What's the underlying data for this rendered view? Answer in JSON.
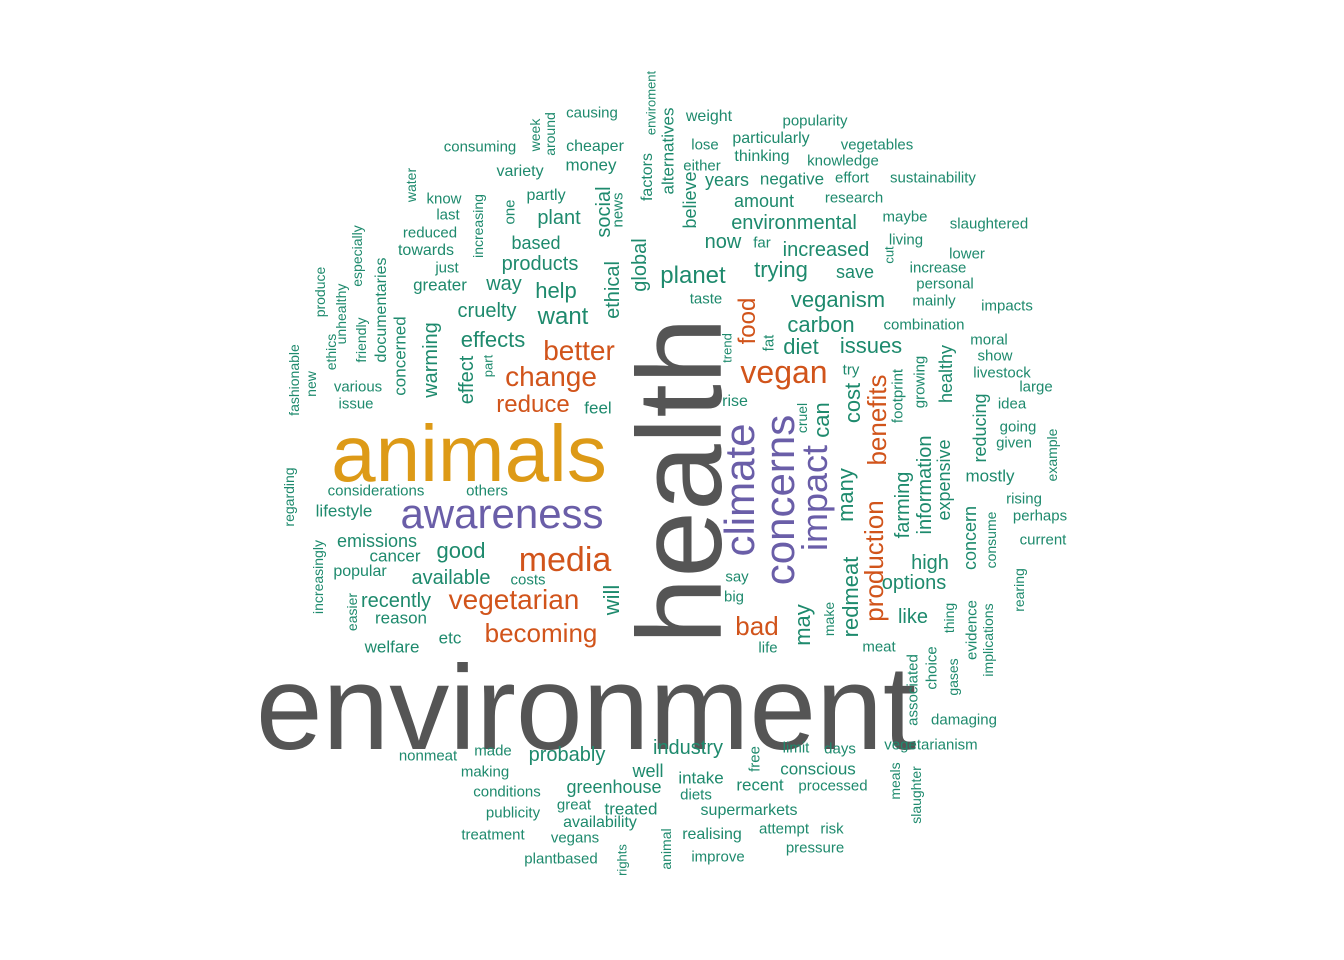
{
  "chart_data": {
    "type": "wordcloud",
    "title": "",
    "colors": {
      "gray": "#555555",
      "gold": "#dd9a17",
      "purple": "#6a5ea8",
      "orange": "#d1541b",
      "green": "#1e8a6d"
    },
    "words": [
      {
        "text": "environment",
        "weight": 100,
        "color": "gray"
      },
      {
        "text": "health",
        "weight": 100,
        "color": "gray"
      },
      {
        "text": "animals",
        "weight": 60,
        "color": "gold"
      },
      {
        "text": "awareness",
        "weight": 32,
        "color": "purple"
      },
      {
        "text": "climate",
        "weight": 34,
        "color": "purple"
      },
      {
        "text": "concerns",
        "weight": 32,
        "color": "purple"
      },
      {
        "text": "impact",
        "weight": 28,
        "color": "purple"
      },
      {
        "text": "media",
        "weight": 22,
        "color": "orange"
      },
      {
        "text": "vegan",
        "weight": 21,
        "color": "orange"
      },
      {
        "text": "better",
        "weight": 18,
        "color": "orange"
      },
      {
        "text": "change",
        "weight": 18,
        "color": "orange"
      },
      {
        "text": "vegetarian",
        "weight": 18,
        "color": "orange"
      },
      {
        "text": "becoming",
        "weight": 16,
        "color": "orange"
      },
      {
        "text": "reduce",
        "weight": 16,
        "color": "orange"
      },
      {
        "text": "production",
        "weight": 16,
        "color": "orange"
      },
      {
        "text": "benefits",
        "weight": 16,
        "color": "orange"
      },
      {
        "text": "bad",
        "weight": 16,
        "color": "orange"
      },
      {
        "text": "food",
        "weight": 14,
        "color": "orange"
      },
      {
        "text": "may",
        "weight": 14,
        "color": "green"
      },
      {
        "text": "redmeat",
        "weight": 14,
        "color": "green"
      },
      {
        "text": "many",
        "weight": 14,
        "color": "green"
      },
      {
        "text": "cost",
        "weight": 13,
        "color": "green"
      },
      {
        "text": "can",
        "weight": 13,
        "color": "green"
      },
      {
        "text": "will",
        "weight": 12,
        "color": "green"
      },
      {
        "text": "global",
        "weight": 12,
        "color": "green"
      },
      {
        "text": "ethical",
        "weight": 12,
        "color": "green"
      },
      {
        "text": "social",
        "weight": 11,
        "color": "green"
      },
      {
        "text": "veganism",
        "weight": 14,
        "color": "green"
      },
      {
        "text": "carbon",
        "weight": 14,
        "color": "green"
      },
      {
        "text": "diet",
        "weight": 14,
        "color": "green"
      },
      {
        "text": "issues",
        "weight": 14,
        "color": "green"
      },
      {
        "text": "planet",
        "weight": 14,
        "color": "green"
      },
      {
        "text": "trying",
        "weight": 13,
        "color": "green"
      },
      {
        "text": "increased",
        "weight": 13,
        "color": "green"
      },
      {
        "text": "environmental",
        "weight": 13,
        "color": "green"
      },
      {
        "text": "good",
        "weight": 13,
        "color": "green"
      },
      {
        "text": "effects",
        "weight": 13,
        "color": "green"
      },
      {
        "text": "want",
        "weight": 13,
        "color": "green"
      },
      {
        "text": "help",
        "weight": 13,
        "color": "green"
      },
      {
        "text": "cruelty",
        "weight": 12,
        "color": "green"
      },
      {
        "text": "products",
        "weight": 12,
        "color": "green"
      },
      {
        "text": "farming",
        "weight": 12,
        "color": "green"
      },
      {
        "text": "information",
        "weight": 12,
        "color": "green"
      },
      {
        "text": "expensive",
        "weight": 12,
        "color": "green"
      },
      {
        "text": "healthy",
        "weight": 11,
        "color": "green"
      },
      {
        "text": "concern",
        "weight": 11,
        "color": "green"
      },
      {
        "text": "reducing",
        "weight": 11,
        "color": "green"
      },
      {
        "text": "options",
        "weight": 12,
        "color": "green"
      },
      {
        "text": "high",
        "weight": 12,
        "color": "green"
      },
      {
        "text": "like",
        "weight": 12,
        "color": "green"
      },
      {
        "text": "industry",
        "weight": 12,
        "color": "green"
      },
      {
        "text": "probably",
        "weight": 12,
        "color": "green"
      },
      {
        "text": "well",
        "weight": 12,
        "color": "green"
      },
      {
        "text": "greenhouse",
        "weight": 12,
        "color": "green"
      },
      {
        "text": "recently",
        "weight": 12,
        "color": "green"
      },
      {
        "text": "available",
        "weight": 11,
        "color": "green"
      },
      {
        "text": "warming",
        "weight": 11,
        "color": "green"
      },
      {
        "text": "effect",
        "weight": 11,
        "color": "green"
      },
      {
        "text": "now",
        "weight": 11,
        "color": "green"
      },
      {
        "text": "way",
        "weight": 11,
        "color": "green"
      },
      {
        "text": "plant",
        "weight": 11,
        "color": "green"
      },
      {
        "text": "based",
        "weight": 11,
        "color": "green"
      },
      {
        "text": "amount",
        "weight": 11,
        "color": "green"
      },
      {
        "text": "years",
        "weight": 11,
        "color": "green"
      },
      {
        "text": "save",
        "weight": 11,
        "color": "green"
      },
      {
        "text": "believe",
        "weight": 11,
        "color": "green"
      },
      {
        "text": "alternatives",
        "weight": 10,
        "color": "green"
      },
      {
        "text": "emissions",
        "weight": 10,
        "color": "green"
      },
      {
        "text": "cancer",
        "weight": 10,
        "color": "green"
      },
      {
        "text": "popular",
        "weight": 10,
        "color": "green"
      },
      {
        "text": "reason",
        "weight": 10,
        "color": "green"
      },
      {
        "text": "welfare",
        "weight": 10,
        "color": "green"
      },
      {
        "text": "etc",
        "weight": 10,
        "color": "green"
      },
      {
        "text": "costs",
        "weight": 9,
        "color": "green"
      },
      {
        "text": "lifestyle",
        "weight": 10,
        "color": "green"
      },
      {
        "text": "considerations",
        "weight": 9,
        "color": "green"
      },
      {
        "text": "others",
        "weight": 9,
        "color": "green"
      },
      {
        "text": "feel",
        "weight": 10,
        "color": "green"
      },
      {
        "text": "concerned",
        "weight": 10,
        "color": "green"
      },
      {
        "text": "documentaries",
        "weight": 9,
        "color": "green"
      },
      {
        "text": "greater",
        "weight": 10,
        "color": "green"
      },
      {
        "text": "towards",
        "weight": 10,
        "color": "green"
      },
      {
        "text": "reduced",
        "weight": 9,
        "color": "green"
      },
      {
        "text": "last",
        "weight": 9,
        "color": "green"
      },
      {
        "text": "just",
        "weight": 9,
        "color": "green"
      },
      {
        "text": "know",
        "weight": 9,
        "color": "green"
      },
      {
        "text": "increasing",
        "weight": 9,
        "color": "green"
      },
      {
        "text": "one",
        "weight": 9,
        "color": "green"
      },
      {
        "text": "partly",
        "weight": 10,
        "color": "green"
      },
      {
        "text": "variety",
        "weight": 10,
        "color": "green"
      },
      {
        "text": "money",
        "weight": 10,
        "color": "green"
      },
      {
        "text": "cheaper",
        "weight": 10,
        "color": "green"
      },
      {
        "text": "consuming",
        "weight": 9,
        "color": "green"
      },
      {
        "text": "causing",
        "weight": 9,
        "color": "green"
      },
      {
        "text": "around",
        "weight": 9,
        "color": "green"
      },
      {
        "text": "week",
        "weight": 9,
        "color": "green"
      },
      {
        "text": "water",
        "weight": 9,
        "color": "green"
      },
      {
        "text": "news",
        "weight": 9,
        "color": "green"
      },
      {
        "text": "factors",
        "weight": 9,
        "color": "green"
      },
      {
        "text": "enviroment",
        "weight": 8,
        "color": "green"
      },
      {
        "text": "weight",
        "weight": 9,
        "color": "green"
      },
      {
        "text": "lose",
        "weight": 9,
        "color": "green"
      },
      {
        "text": "either",
        "weight": 9,
        "color": "green"
      },
      {
        "text": "particularly",
        "weight": 9,
        "color": "green"
      },
      {
        "text": "thinking",
        "weight": 9,
        "color": "green"
      },
      {
        "text": "popularity",
        "weight": 9,
        "color": "green"
      },
      {
        "text": "knowledge",
        "weight": 9,
        "color": "green"
      },
      {
        "text": "vegetables",
        "weight": 9,
        "color": "green"
      },
      {
        "text": "negative",
        "weight": 10,
        "color": "green"
      },
      {
        "text": "effort",
        "weight": 9,
        "color": "green"
      },
      {
        "text": "sustainability",
        "weight": 9,
        "color": "green"
      },
      {
        "text": "research",
        "weight": 9,
        "color": "green"
      },
      {
        "text": "maybe",
        "weight": 9,
        "color": "green"
      },
      {
        "text": "slaughtered",
        "weight": 9,
        "color": "green"
      },
      {
        "text": "far",
        "weight": 9,
        "color": "green"
      },
      {
        "text": "living",
        "weight": 9,
        "color": "green"
      },
      {
        "text": "cut",
        "weight": 8,
        "color": "green"
      },
      {
        "text": "increase",
        "weight": 9,
        "color": "green"
      },
      {
        "text": "lower",
        "weight": 9,
        "color": "green"
      },
      {
        "text": "personal",
        "weight": 9,
        "color": "green"
      },
      {
        "text": "mainly",
        "weight": 9,
        "color": "green"
      },
      {
        "text": "impacts",
        "weight": 9,
        "color": "green"
      },
      {
        "text": "taste",
        "weight": 9,
        "color": "green"
      },
      {
        "text": "combination",
        "weight": 9,
        "color": "green"
      },
      {
        "text": "moral",
        "weight": 9,
        "color": "green"
      },
      {
        "text": "show",
        "weight": 9,
        "color": "green"
      },
      {
        "text": "livestock",
        "weight": 9,
        "color": "green"
      },
      {
        "text": "large",
        "weight": 9,
        "color": "green"
      },
      {
        "text": "idea",
        "weight": 9,
        "color": "green"
      },
      {
        "text": "going",
        "weight": 9,
        "color": "green"
      },
      {
        "text": "given",
        "weight": 9,
        "color": "green"
      },
      {
        "text": "example",
        "weight": 8,
        "color": "green"
      },
      {
        "text": "mostly",
        "weight": 10,
        "color": "green"
      },
      {
        "text": "rising",
        "weight": 9,
        "color": "green"
      },
      {
        "text": "perhaps",
        "weight": 9,
        "color": "green"
      },
      {
        "text": "current",
        "weight": 9,
        "color": "green"
      },
      {
        "text": "consume",
        "weight": 9,
        "color": "green"
      },
      {
        "text": "rearing",
        "weight": 9,
        "color": "green"
      },
      {
        "text": "evidence",
        "weight": 9,
        "color": "green"
      },
      {
        "text": "implications",
        "weight": 9,
        "color": "green"
      },
      {
        "text": "thing",
        "weight": 9,
        "color": "green"
      },
      {
        "text": "choice",
        "weight": 9,
        "color": "green"
      },
      {
        "text": "gases",
        "weight": 9,
        "color": "green"
      },
      {
        "text": "associated",
        "weight": 9,
        "color": "green"
      },
      {
        "text": "damaging",
        "weight": 9,
        "color": "green"
      },
      {
        "text": "vegetarianism",
        "weight": 9,
        "color": "green"
      },
      {
        "text": "meals",
        "weight": 8,
        "color": "green"
      },
      {
        "text": "slaughter",
        "weight": 8,
        "color": "green"
      },
      {
        "text": "footprint",
        "weight": 9,
        "color": "green"
      },
      {
        "text": "growing",
        "weight": 9,
        "color": "green"
      },
      {
        "text": "try",
        "weight": 9,
        "color": "green"
      },
      {
        "text": "fat",
        "weight": 9,
        "color": "green"
      },
      {
        "text": "trend",
        "weight": 8,
        "color": "green"
      },
      {
        "text": "rise",
        "weight": 9,
        "color": "green"
      },
      {
        "text": "cruel",
        "weight": 8,
        "color": "green"
      },
      {
        "text": "say",
        "weight": 9,
        "color": "green"
      },
      {
        "text": "big",
        "weight": 9,
        "color": "green"
      },
      {
        "text": "make",
        "weight": 8,
        "color": "green"
      },
      {
        "text": "meat",
        "weight": 9,
        "color": "green"
      },
      {
        "text": "life",
        "weight": 9,
        "color": "green"
      },
      {
        "text": "free",
        "weight": 9,
        "color": "green"
      },
      {
        "text": "limit",
        "weight": 9,
        "color": "green"
      },
      {
        "text": "days",
        "weight": 9,
        "color": "green"
      },
      {
        "text": "conscious",
        "weight": 10,
        "color": "green"
      },
      {
        "text": "processed",
        "weight": 9,
        "color": "green"
      },
      {
        "text": "recent",
        "weight": 10,
        "color": "green"
      },
      {
        "text": "intake",
        "weight": 10,
        "color": "green"
      },
      {
        "text": "diets",
        "weight": 9,
        "color": "green"
      },
      {
        "text": "supermarkets",
        "weight": 9,
        "color": "green"
      },
      {
        "text": "attempt",
        "weight": 9,
        "color": "green"
      },
      {
        "text": "risk",
        "weight": 9,
        "color": "green"
      },
      {
        "text": "pressure",
        "weight": 9,
        "color": "green"
      },
      {
        "text": "realising",
        "weight": 9,
        "color": "green"
      },
      {
        "text": "improve",
        "weight": 9,
        "color": "green"
      },
      {
        "text": "animal",
        "weight": 8,
        "color": "green"
      },
      {
        "text": "rights",
        "weight": 8,
        "color": "green"
      },
      {
        "text": "treated",
        "weight": 10,
        "color": "green"
      },
      {
        "text": "availability",
        "weight": 9,
        "color": "green"
      },
      {
        "text": "great",
        "weight": 9,
        "color": "green"
      },
      {
        "text": "vegans",
        "weight": 9,
        "color": "green"
      },
      {
        "text": "plantbased",
        "weight": 9,
        "color": "green"
      },
      {
        "text": "treatment",
        "weight": 9,
        "color": "green"
      },
      {
        "text": "publicity",
        "weight": 9,
        "color": "green"
      },
      {
        "text": "conditions",
        "weight": 9,
        "color": "green"
      },
      {
        "text": "making",
        "weight": 9,
        "color": "green"
      },
      {
        "text": "made",
        "weight": 9,
        "color": "green"
      },
      {
        "text": "nonmeat",
        "weight": 9,
        "color": "green"
      },
      {
        "text": "easier",
        "weight": 8,
        "color": "green"
      },
      {
        "text": "increasingly",
        "weight": 8,
        "color": "green"
      },
      {
        "text": "regarding",
        "weight": 8,
        "color": "green"
      },
      {
        "text": "fashionable",
        "weight": 8,
        "color": "green"
      },
      {
        "text": "new",
        "weight": 8,
        "color": "green"
      },
      {
        "text": "ethics",
        "weight": 8,
        "color": "green"
      },
      {
        "text": "produce",
        "weight": 8,
        "color": "green"
      },
      {
        "text": "unhealthy",
        "weight": 8,
        "color": "green"
      },
      {
        "text": "friendly",
        "weight": 8,
        "color": "green"
      },
      {
        "text": "especially",
        "weight": 8,
        "color": "green"
      },
      {
        "text": "various",
        "weight": 9,
        "color": "green"
      },
      {
        "text": "issue",
        "weight": 9,
        "color": "green"
      },
      {
        "text": "part",
        "weight": 8,
        "color": "green"
      }
    ]
  }
}
